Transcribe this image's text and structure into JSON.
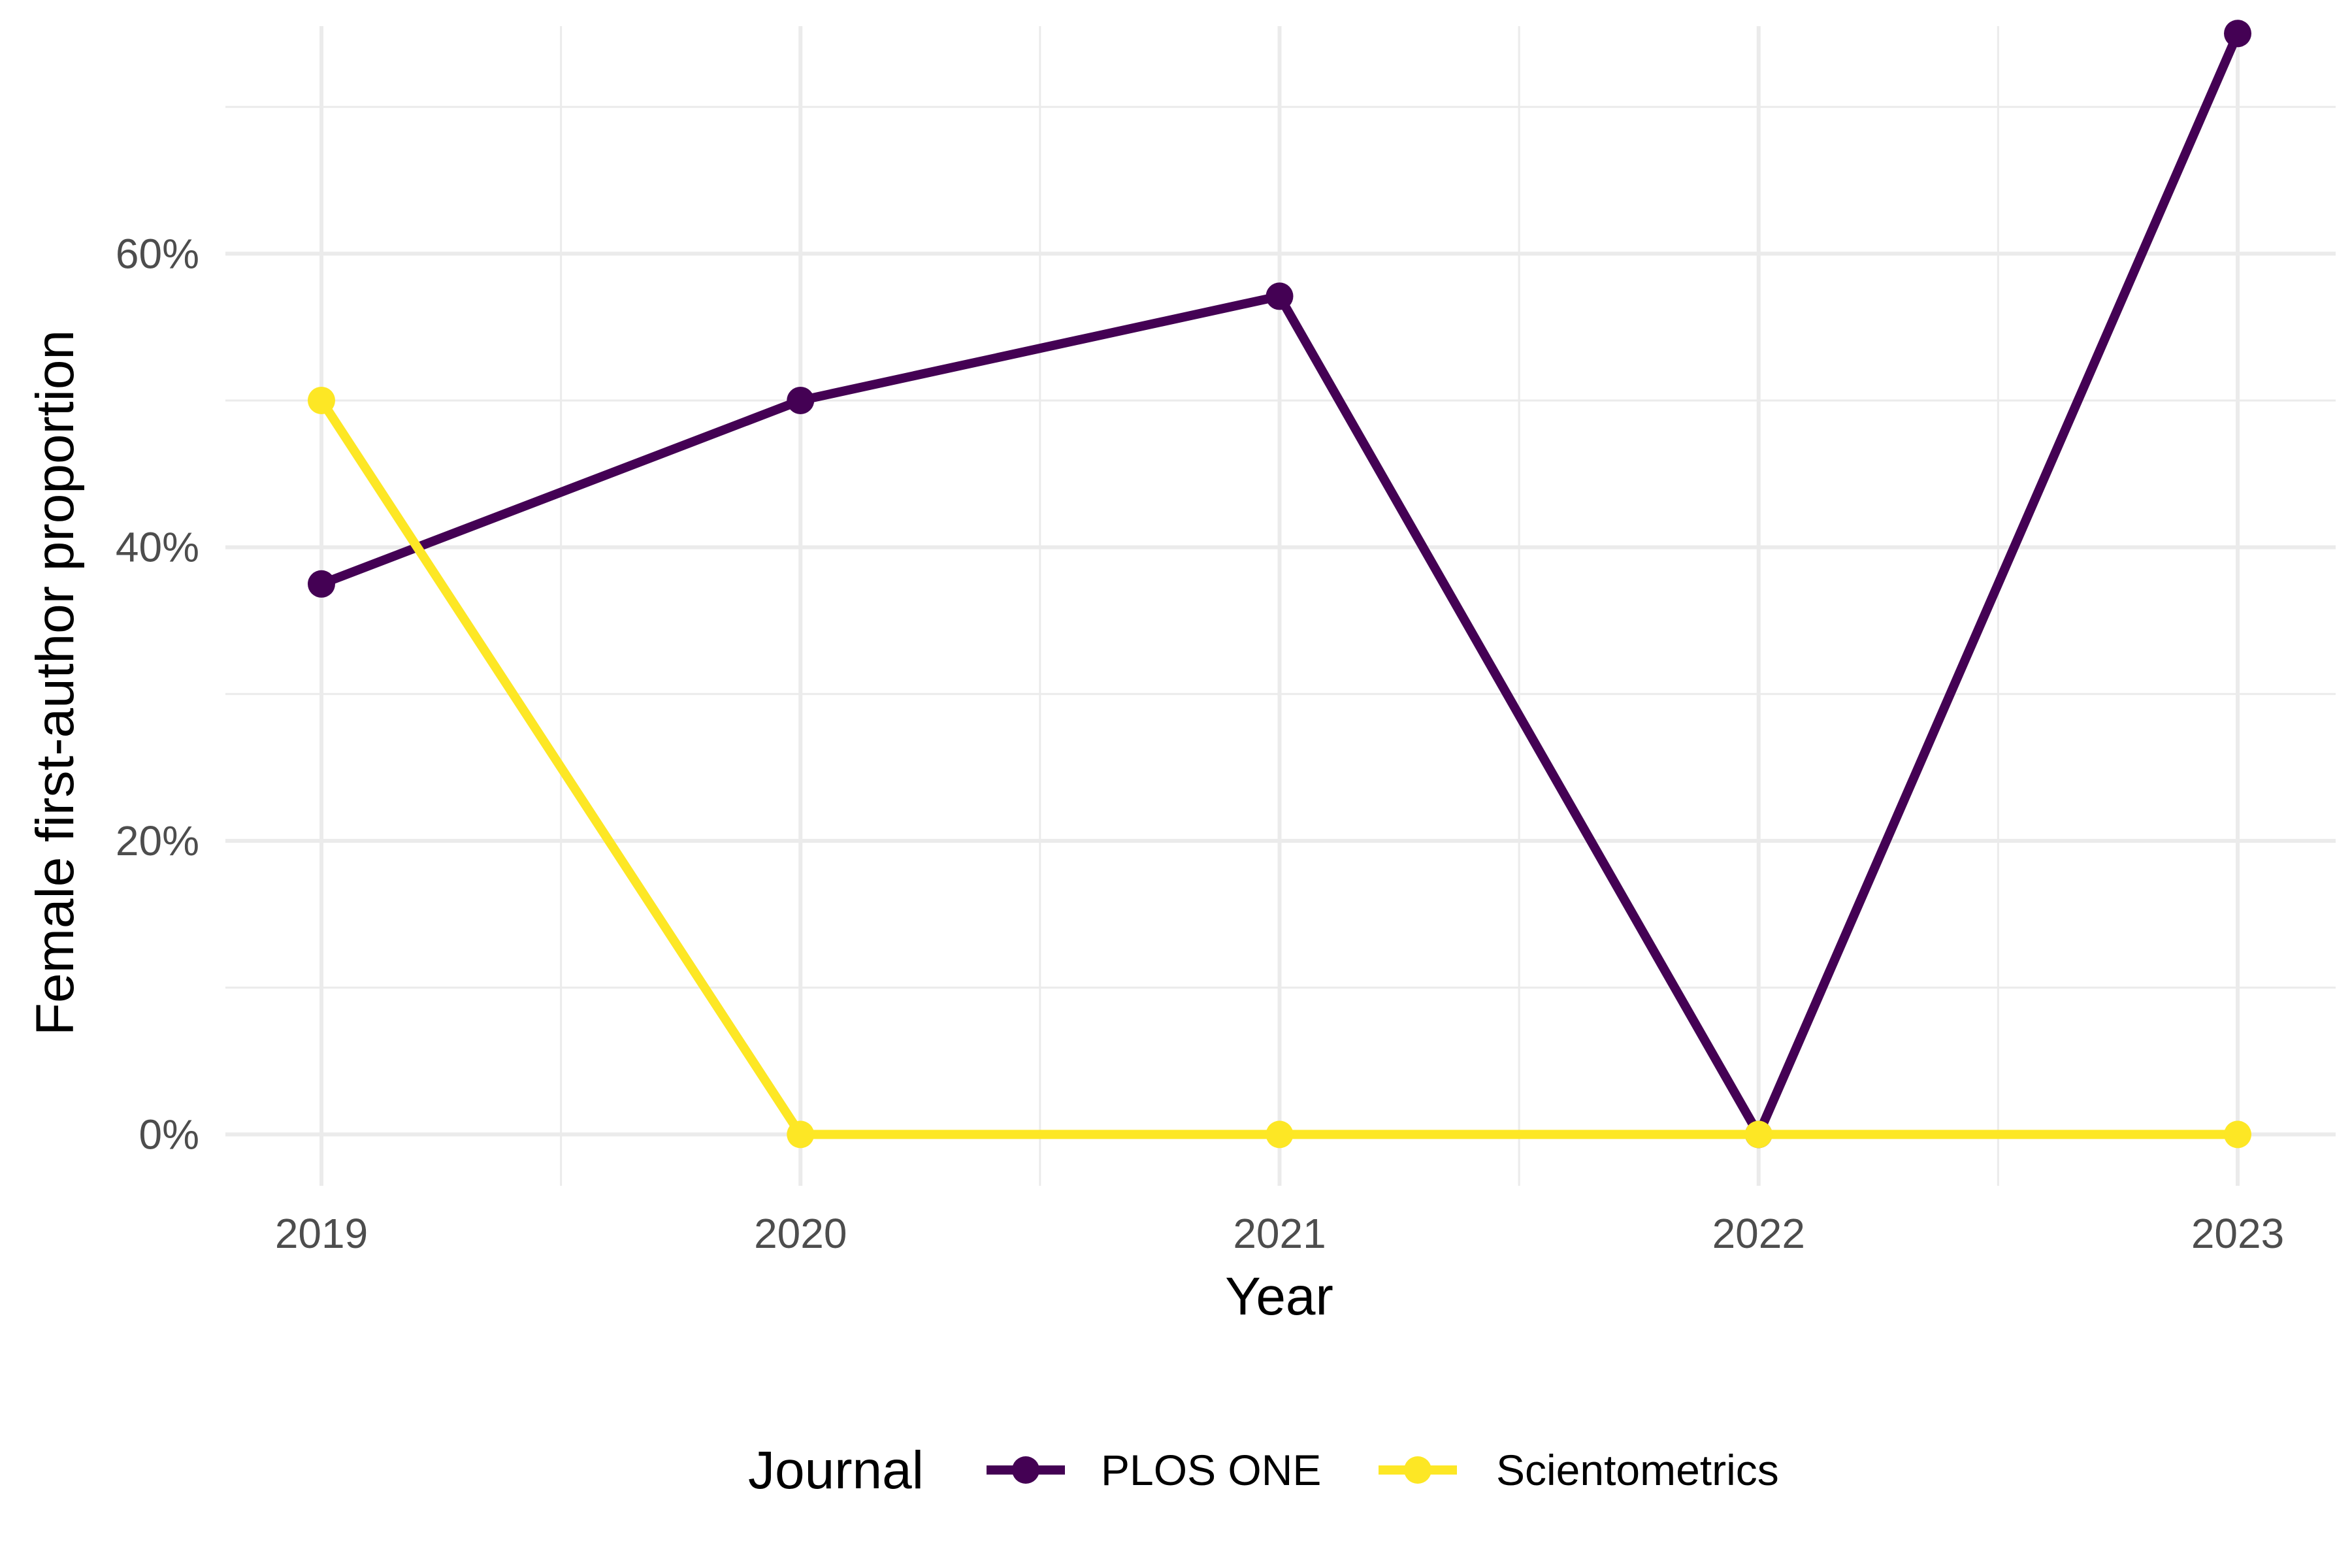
{
  "chart_data": {
    "type": "line",
    "xlabel": "Year",
    "ylabel": "Female first-author proportion",
    "x": [
      "2019",
      "2020",
      "2021",
      "2022",
      "2023"
    ],
    "ylim": [
      -0.035,
      0.755
    ],
    "y_ticks": [
      0,
      0.2,
      0.4,
      0.6
    ],
    "y_tick_labels": [
      "0%",
      "20%",
      "40%",
      "60%"
    ],
    "grid": true,
    "legend": {
      "title": "Journal",
      "position": "bottom"
    },
    "series": [
      {
        "name": "PLOS ONE",
        "color": "#440154",
        "values": [
          0.375,
          0.5,
          0.571,
          0.0,
          0.75
        ]
      },
      {
        "name": "Scientometrics",
        "color": "#fde725",
        "values": [
          0.5,
          0.0,
          0.0,
          0.0,
          0.0
        ]
      }
    ]
  }
}
